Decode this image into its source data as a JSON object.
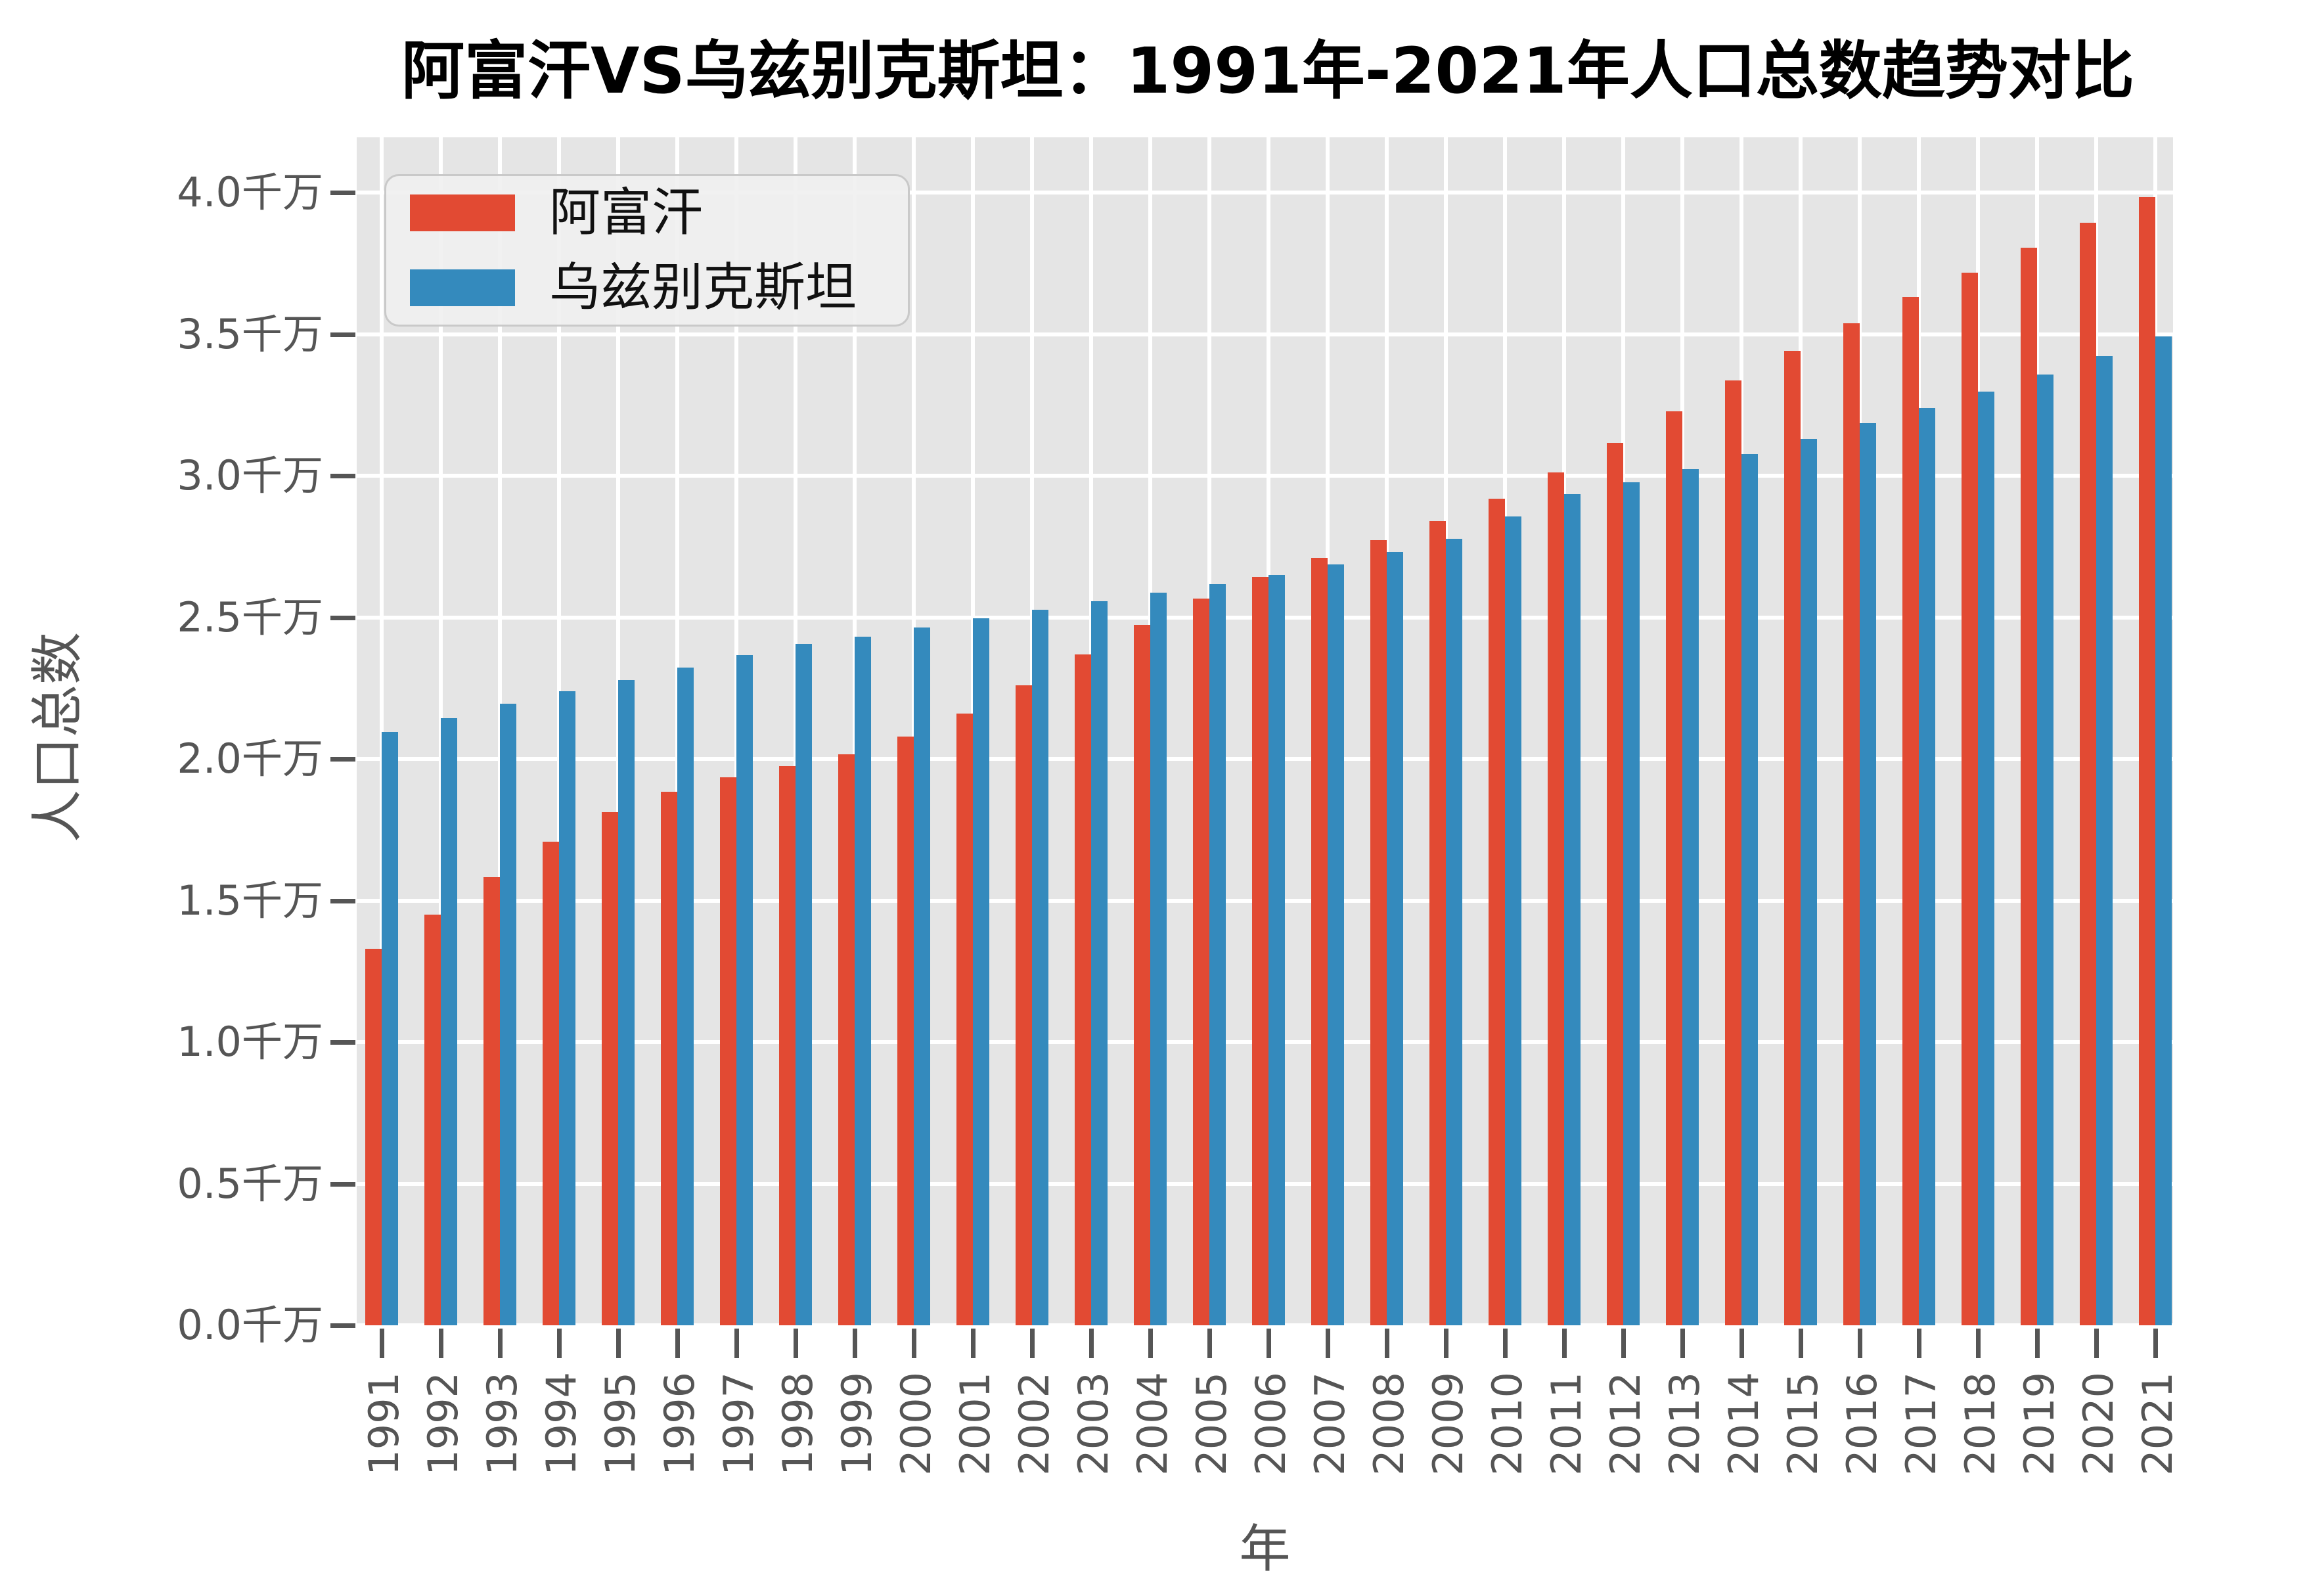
{
  "title": "阿富汗VS乌兹别克斯坦：1991年-2021年人口总数趋势对比",
  "legend": {
    "items": [
      {
        "id": "afghanistan",
        "label": "阿富汗",
        "color": "#E24A33"
      },
      {
        "id": "uzbekistan",
        "label": "乌兹别克斯坦",
        "color": "#348ABD"
      }
    ]
  },
  "chart_data": {
    "type": "bar",
    "title": "阿富汗VS乌兹别克斯坦：1991年-2021年人口总数趋势对比",
    "xlabel": "年",
    "ylabel": "人口总数",
    "unit": "千万",
    "categories": [
      1991,
      1992,
      1993,
      1994,
      1995,
      1996,
      1997,
      1998,
      1999,
      2000,
      2001,
      2002,
      2003,
      2004,
      2005,
      2006,
      2007,
      2008,
      2009,
      2010,
      2011,
      2012,
      2013,
      2014,
      2015,
      2016,
      2017,
      2018,
      2019,
      2020,
      2021
    ],
    "series": [
      {
        "id": "afghanistan",
        "name": "阿富汗",
        "color": "#E24A33",
        "values": [
          1.33,
          1.449,
          1.582,
          1.708,
          1.811,
          1.885,
          1.936,
          1.974,
          2.017,
          2.078,
          2.161,
          2.26,
          2.368,
          2.473,
          2.565,
          2.643,
          2.71,
          2.772,
          2.839,
          2.919,
          3.012,
          3.116,
          3.227,
          3.337,
          3.441,
          3.538,
          3.63,
          3.717,
          3.804,
          3.893,
          3.984
        ]
      },
      {
        "id": "uzbekistan",
        "name": "乌兹别克斯坦",
        "color": "#348ABD",
        "values": [
          2.095,
          2.145,
          2.194,
          2.238,
          2.279,
          2.323,
          2.367,
          2.405,
          2.431,
          2.465,
          2.496,
          2.527,
          2.557,
          2.586,
          2.617,
          2.649,
          2.687,
          2.73,
          2.777,
          2.856,
          2.934,
          2.977,
          3.024,
          3.076,
          3.13,
          3.185,
          3.239,
          3.296,
          3.358,
          3.423,
          3.492
        ]
      }
    ],
    "ylim": [
      0,
      4.195
    ],
    "ytick_step": 0.5,
    "ytick_labels": [
      "0.0千万",
      "0.5千万",
      "1.0千万",
      "1.5千万",
      "2.0千万",
      "2.5千万",
      "3.0千万",
      "3.5千万",
      "4.0千万"
    ],
    "grid": true,
    "legend_position": "upper left",
    "colors": {
      "plot_bg": "#E5E5E5",
      "grid": "#FFFFFF",
      "tick_text": "#555555",
      "tick_mark": "#555555",
      "title_text": "#000000",
      "legend_bg": "rgba(240,240,240,0.92)",
      "legend_border": "#C9C9C9",
      "legend_text": "#111111"
    }
  }
}
